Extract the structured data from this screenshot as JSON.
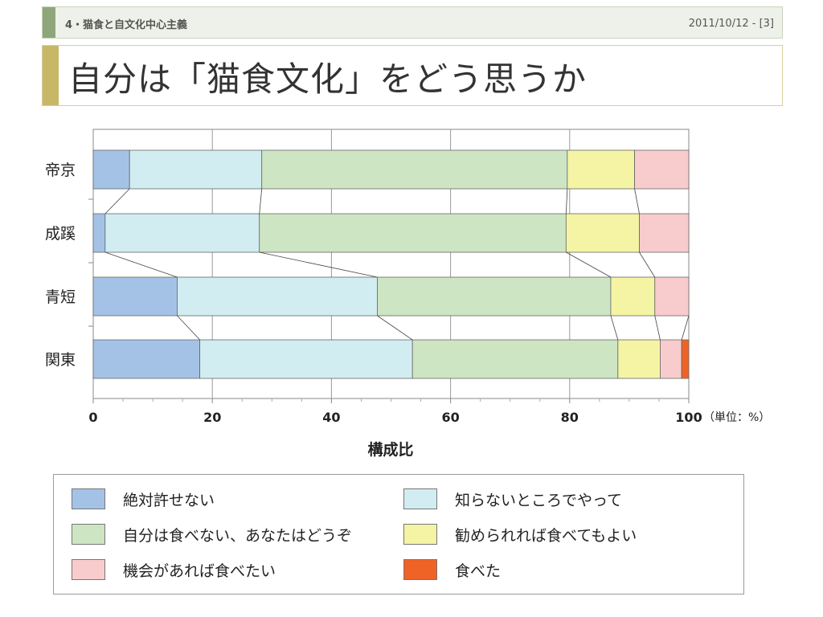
{
  "header": {
    "section": "4・猫食と自文化中心主義",
    "date_page": "2011/10/12 - [3]"
  },
  "title": "自分は「猫食文化」をどう思うか",
  "chart_data": {
    "type": "bar",
    "orientation": "horizontal",
    "stacked": "100%",
    "categories": [
      "帝京",
      "成蹊",
      "青短",
      "関東"
    ],
    "series": [
      {
        "name": "絶対許せない",
        "color": "#a4c2e6",
        "values": [
          6.1,
          2.0,
          14.1,
          17.9
        ]
      },
      {
        "name": "知らないところでやって",
        "color": "#d2edf1",
        "values": [
          22.2,
          25.9,
          33.6,
          35.7
        ]
      },
      {
        "name": "自分は食べない、あなたはどうぞ",
        "color": "#cde5c3",
        "values": [
          51.3,
          51.5,
          39.2,
          34.5
        ]
      },
      {
        "name": "勧められれば食べてもよい",
        "color": "#f4f4a4",
        "values": [
          11.3,
          12.3,
          7.4,
          7.1
        ]
      },
      {
        "name": "機会があれば食べたい",
        "color": "#f8cccc",
        "values": [
          9.1,
          8.3,
          5.7,
          3.6
        ]
      },
      {
        "name": "食べた",
        "color": "#ef6327",
        "values": [
          0,
          0,
          0,
          1.2
        ]
      }
    ],
    "xlim": [
      0,
      100
    ],
    "xticks": [
      "0",
      "20",
      "40",
      "60",
      "80",
      "100"
    ],
    "xlabel": "構成比",
    "unit_note": "（単位：%）",
    "grid": true,
    "legend_position": "bottom"
  }
}
